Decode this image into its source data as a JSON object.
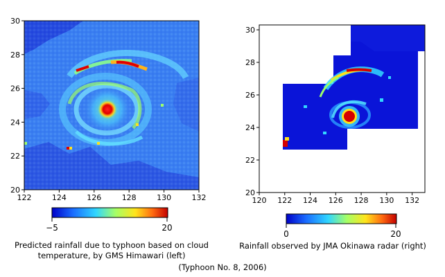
{
  "chart_data": [
    {
      "type": "heatmap",
      "caption_lines": [
        "Predicted rainfall due to typhoon based on cloud",
        "temperature, by GMS Himawari (left)"
      ],
      "x_ticks": [
        "122",
        "124",
        "126",
        "128",
        "130",
        "132"
      ],
      "y_ticks": [
        "20",
        "22",
        "24",
        "26",
        "28",
        "30"
      ],
      "xlim": [
        122,
        132
      ],
      "ylim": [
        20,
        30
      ],
      "colorbar": {
        "min_label": "−5",
        "max_label": "20",
        "min": -5,
        "max": 20
      },
      "features": {
        "eye_center": [
          126.8,
          24.5
        ],
        "rainband_peak": [
          127.6,
          27.3
        ]
      }
    },
    {
      "type": "heatmap",
      "caption_lines": [
        "Rainfall observed by JMA Okinawa radar (right)"
      ],
      "x_ticks": [
        "120",
        "122",
        "124",
        "126",
        "128",
        "130",
        "132"
      ],
      "y_ticks": [
        "20",
        "22",
        "24",
        "26",
        "28",
        "30"
      ],
      "xlim": [
        120,
        133
      ],
      "ylim": [
        20,
        30.3
      ],
      "colorbar": {
        "min_label": "0",
        "max_label": "20",
        "min": 0,
        "max": 20
      },
      "features": {
        "eye_center": [
          127.0,
          24.7
        ],
        "rainband_peak": [
          127.6,
          27.4
        ]
      }
    }
  ],
  "footer": "(Typhoon No. 8, 2006)",
  "colors": {
    "background_field": "#3a7ef2",
    "scale": [
      "#0000d0",
      "#1a6cff",
      "#33d8ff",
      "#9dff6b",
      "#ffe21a",
      "#ff7a1a",
      "#c00000"
    ]
  }
}
